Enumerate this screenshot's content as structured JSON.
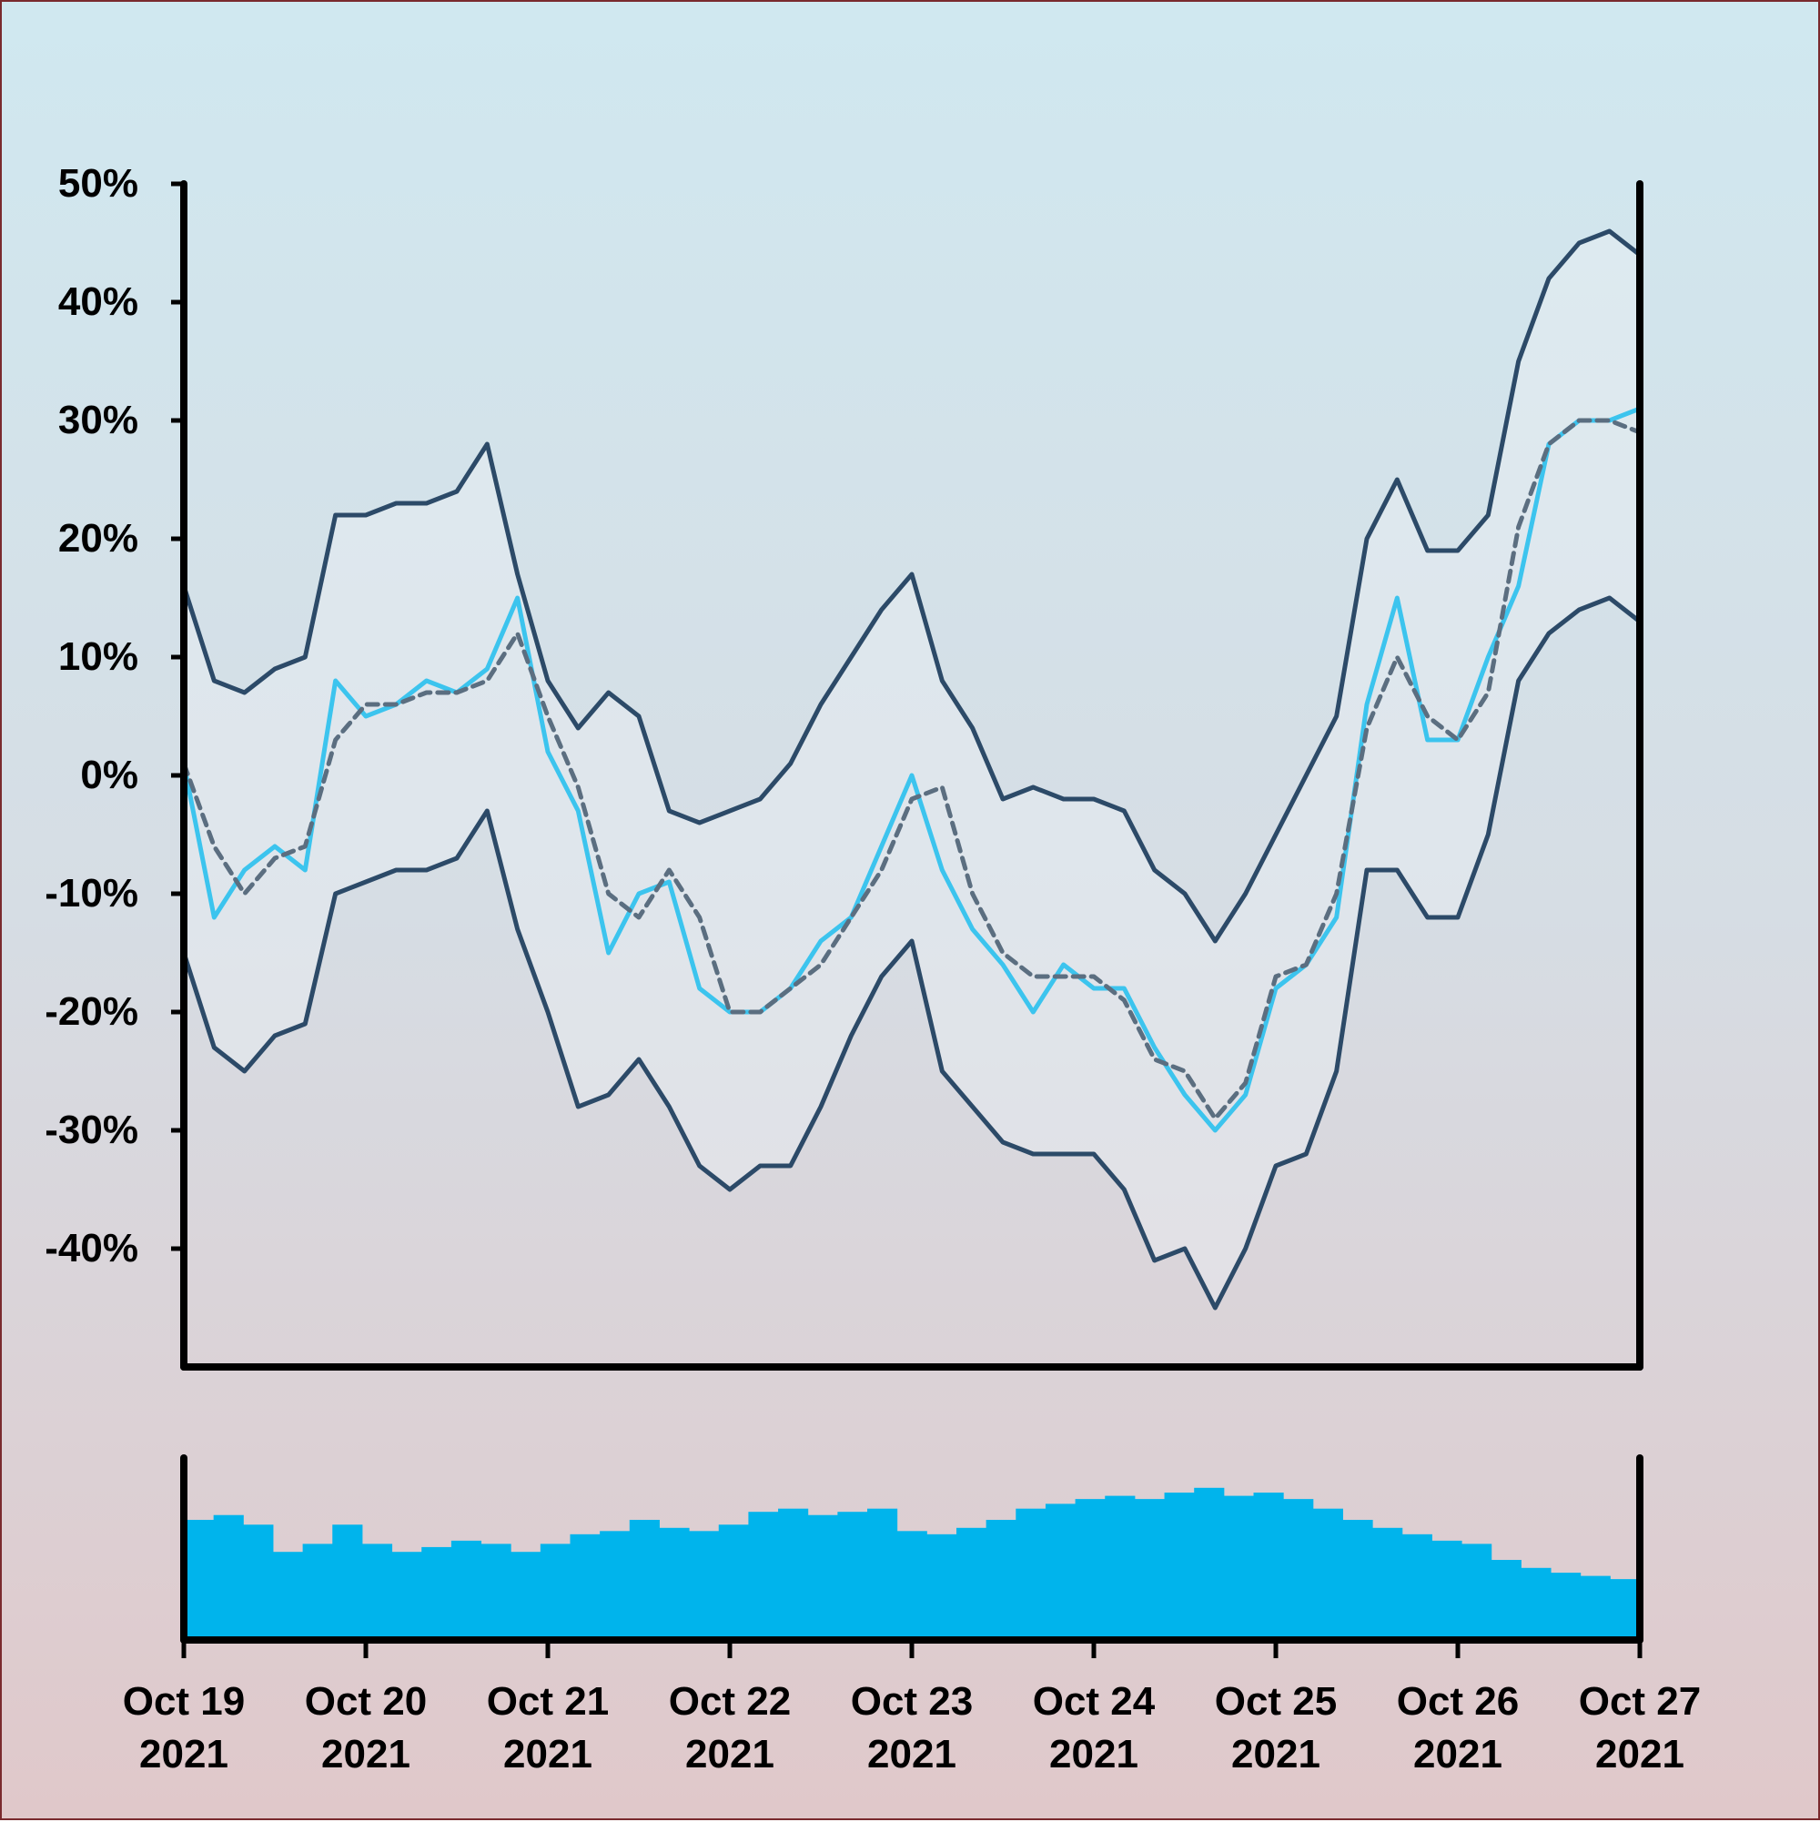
{
  "chart_data": [
    {
      "type": "line",
      "title": "",
      "xlabel": "",
      "ylabel": "",
      "x": [
        "2021-10-19",
        "2021-10-19",
        "2021-10-19",
        "2021-10-19",
        "2021-10-19",
        "2021-10-19",
        "2021-10-20",
        "2021-10-20",
        "2021-10-20",
        "2021-10-20",
        "2021-10-20",
        "2021-10-20",
        "2021-10-21",
        "2021-10-21",
        "2021-10-21",
        "2021-10-21",
        "2021-10-21",
        "2021-10-21",
        "2021-10-22",
        "2021-10-22",
        "2021-10-22",
        "2021-10-22",
        "2021-10-22",
        "2021-10-22",
        "2021-10-23",
        "2021-10-23",
        "2021-10-23",
        "2021-10-23",
        "2021-10-23",
        "2021-10-23",
        "2021-10-24",
        "2021-10-24",
        "2021-10-24",
        "2021-10-24",
        "2021-10-24",
        "2021-10-24",
        "2021-10-25",
        "2021-10-25",
        "2021-10-25",
        "2021-10-25",
        "2021-10-25",
        "2021-10-25",
        "2021-10-26",
        "2021-10-26",
        "2021-10-26",
        "2021-10-26",
        "2021-10-26",
        "2021-10-26",
        "2021-10-27"
      ],
      "x_hours": [
        0,
        4,
        8,
        12,
        16,
        20,
        0,
        4,
        8,
        12,
        16,
        20,
        0,
        4,
        8,
        12,
        16,
        20,
        0,
        4,
        8,
        12,
        16,
        20,
        0,
        4,
        8,
        12,
        16,
        20,
        0,
        4,
        8,
        12,
        16,
        20,
        0,
        4,
        8,
        12,
        16,
        20,
        0,
        4,
        8,
        12,
        16,
        20,
        0
      ],
      "xtick_labels": [
        [
          "Oct 19",
          "2021"
        ],
        [
          "Oct 20",
          "2021"
        ],
        [
          "Oct 21",
          "2021"
        ],
        [
          "Oct 22",
          "2021"
        ],
        [
          "Oct 23",
          "2021"
        ],
        [
          "Oct 24",
          "2021"
        ],
        [
          "Oct 25",
          "2021"
        ],
        [
          "Oct 26",
          "2021"
        ],
        [
          "Oct 27",
          "2021"
        ]
      ],
      "ytick_labels": [
        "50%",
        "40%",
        "30%",
        "20%",
        "10%",
        "0%",
        "-10%",
        "-20%",
        "-30%",
        "-40%"
      ],
      "yticks": [
        50,
        40,
        30,
        20,
        10,
        0,
        -10,
        -20,
        -30,
        -40
      ],
      "ylim": [
        -50,
        50
      ],
      "y_unit": "%",
      "grid": false,
      "series": [
        {
          "role": "price",
          "color": "#3cc4ee",
          "values": [
            1,
            -12,
            -8,
            -6,
            -8,
            8,
            5,
            6,
            8,
            7,
            9,
            15,
            2,
            -3,
            -15,
            -10,
            -9,
            -18,
            -20,
            -20,
            -18,
            -14,
            -12,
            -6,
            0,
            -8,
            -13,
            -16,
            -20,
            -16,
            -18,
            -18,
            -23,
            -27,
            -30,
            -27,
            -18,
            -16,
            -12,
            6,
            15,
            3,
            3,
            10,
            16,
            28,
            30,
            30,
            31
          ]
        },
        {
          "role": "moving-average",
          "color": "#5b6e80",
          "dashed": true,
          "values": [
            1,
            -6,
            -10,
            -7,
            -6,
            3,
            6,
            6,
            7,
            7,
            8,
            12,
            5,
            -1,
            -10,
            -12,
            -8,
            -12,
            -20,
            -20,
            -18,
            -16,
            -12,
            -8,
            -2,
            -1,
            -10,
            -15,
            -17,
            -17,
            -17,
            -19,
            -24,
            -25,
            -29,
            -26,
            -17,
            -16,
            -10,
            4,
            10,
            5,
            3,
            7,
            21,
            28,
            30,
            30,
            29
          ]
        },
        {
          "role": "upper-band",
          "color": "#2c4a68",
          "values": [
            16,
            8,
            7,
            9,
            10,
            22,
            22,
            23,
            23,
            24,
            28,
            17,
            8,
            4,
            7,
            5,
            -3,
            -4,
            -3,
            -2,
            1,
            6,
            10,
            14,
            17,
            8,
            4,
            -2,
            -1,
            -2,
            -2,
            -3,
            -8,
            -10,
            -14,
            -10,
            -5,
            0,
            5,
            20,
            25,
            19,
            19,
            22,
            35,
            42,
            45,
            46,
            44
          ]
        },
        {
          "role": "lower-band",
          "color": "#2c4a68",
          "values": [
            -15,
            -23,
            -25,
            -22,
            -21,
            -10,
            -9,
            -8,
            -8,
            -7,
            -3,
            -13,
            -20,
            -28,
            -27,
            -24,
            -28,
            -33,
            -35,
            -33,
            -33,
            -28,
            -22,
            -17,
            -14,
            -25,
            -28,
            -31,
            -32,
            -32,
            -32,
            -35,
            -41,
            -40,
            -45,
            -40,
            -33,
            -32,
            -25,
            -8,
            -8,
            -12,
            -12,
            -5,
            8,
            12,
            14,
            15,
            13
          ]
        }
      ]
    },
    {
      "type": "bar",
      "title": "",
      "xlabel": "",
      "ylabel": "",
      "color": "#00b4ec",
      "ylim": [
        0,
        1
      ],
      "values_note": "",
      "values": [
        0.75,
        0.78,
        0.72,
        0.55,
        0.6,
        0.72,
        0.6,
        0.55,
        0.58,
        0.62,
        0.6,
        0.55,
        0.6,
        0.66,
        0.68,
        0.75,
        0.7,
        0.68,
        0.72,
        0.8,
        0.82,
        0.78,
        0.8,
        0.82,
        0.68,
        0.66,
        0.7,
        0.75,
        0.82,
        0.85,
        0.88,
        0.9,
        0.88,
        0.92,
        0.95,
        0.9,
        0.92,
        0.88,
        0.82,
        0.75,
        0.7,
        0.66,
        0.62,
        0.6,
        0.5,
        0.45,
        0.42,
        0.4,
        0.38
      ]
    }
  ]
}
